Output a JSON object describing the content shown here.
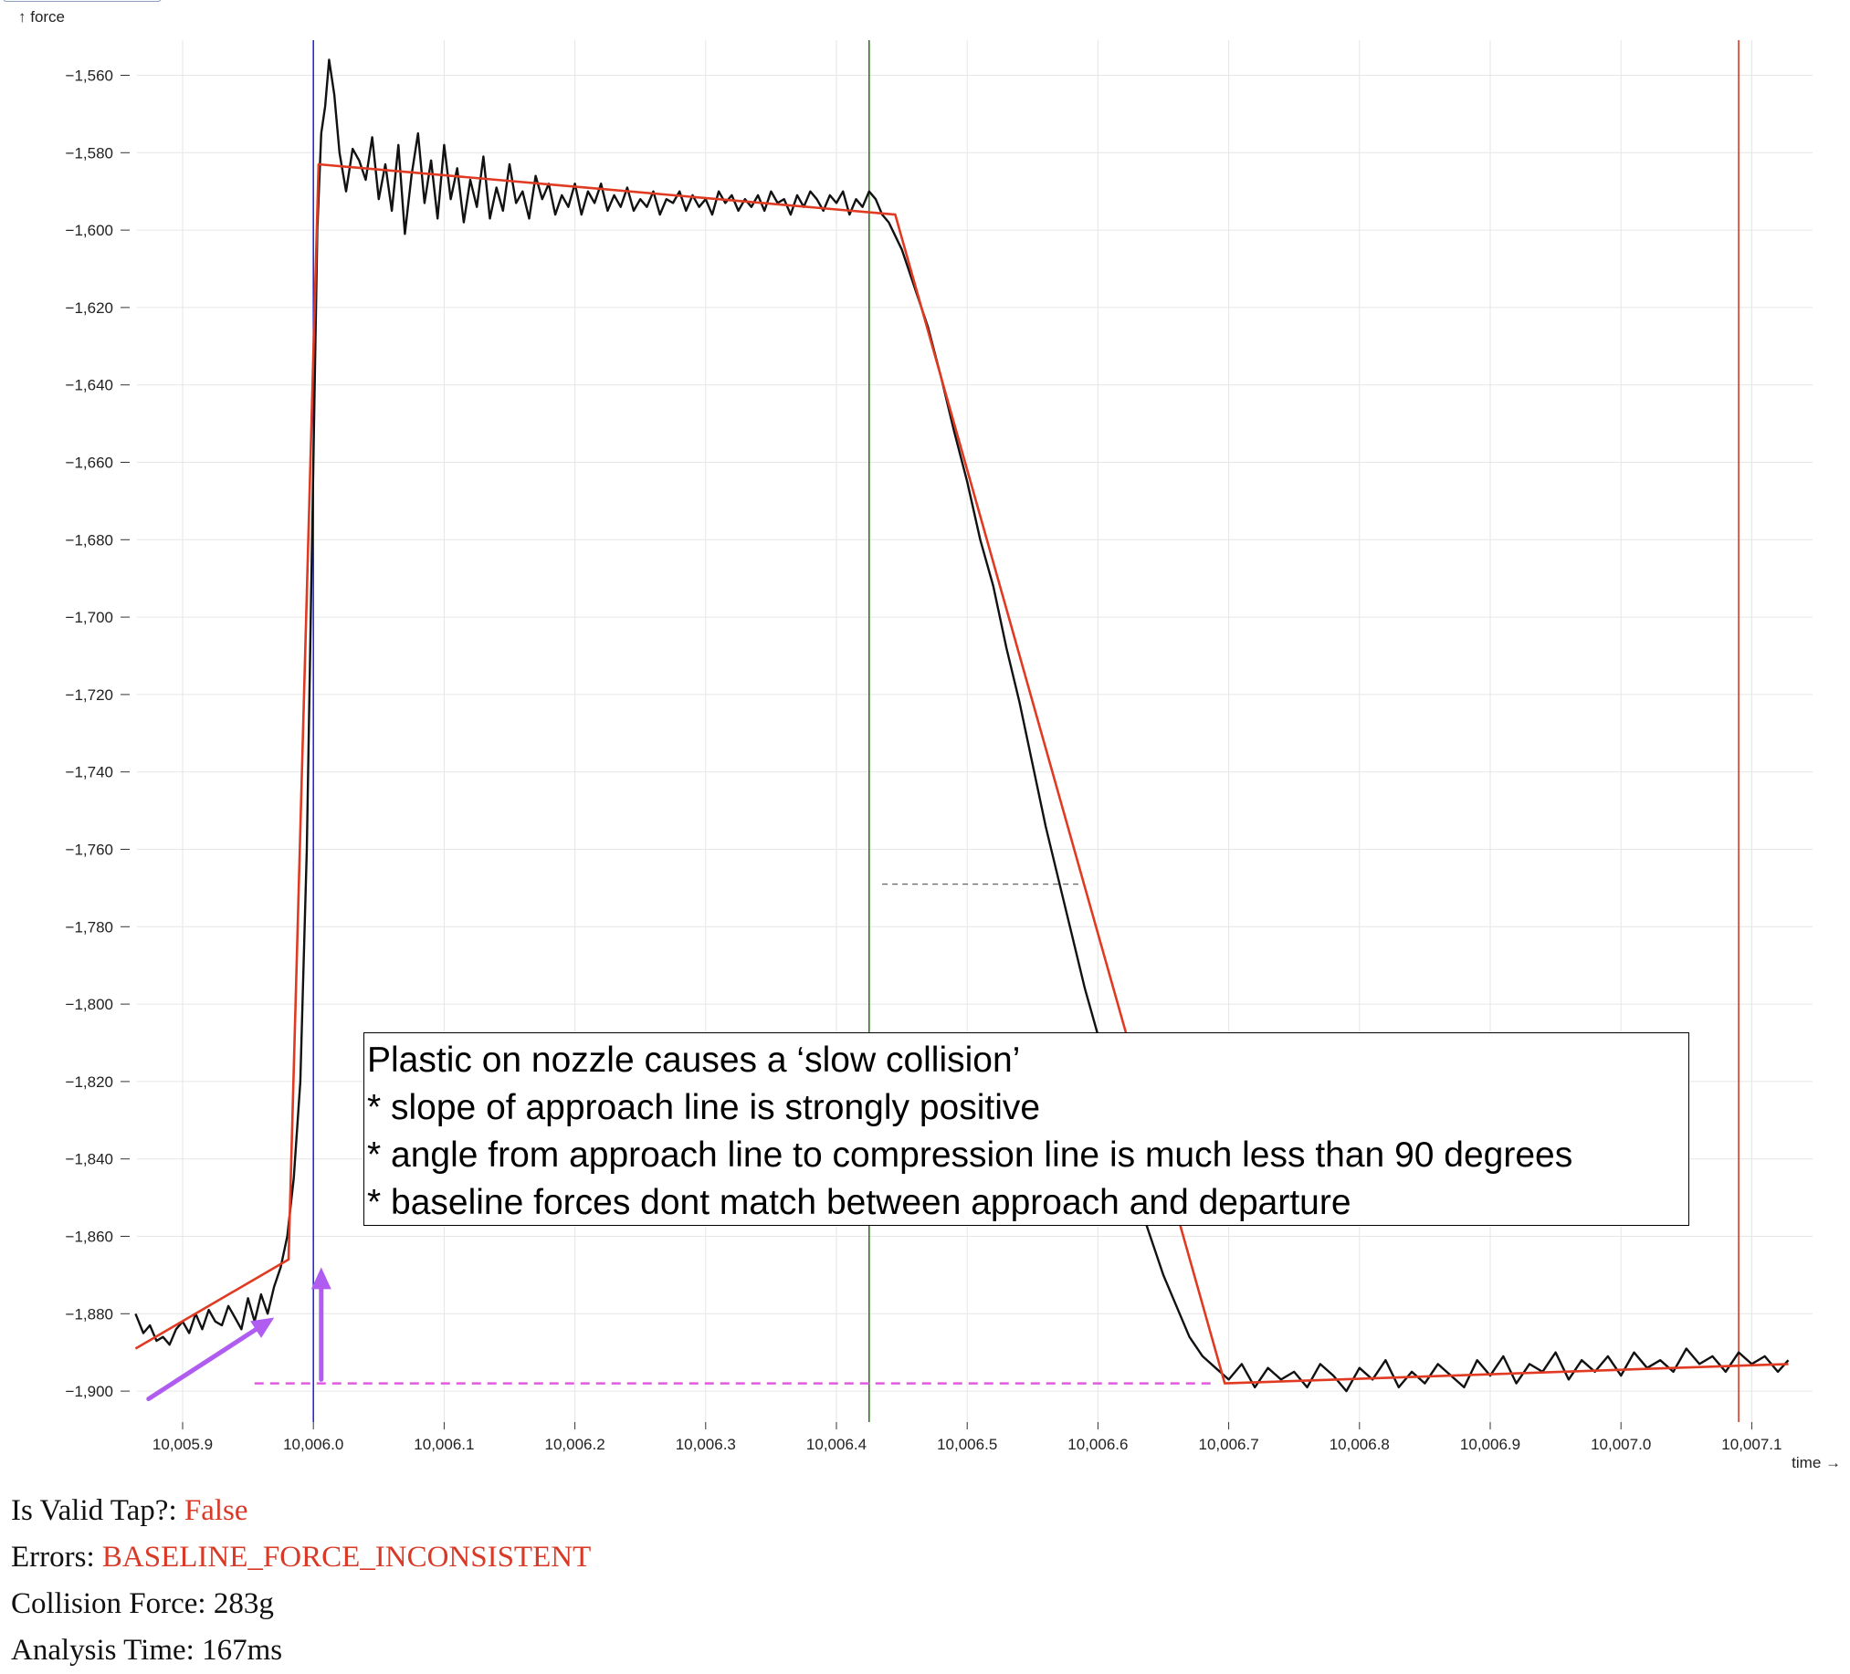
{
  "chart_data": {
    "type": "line",
    "xlabel": "time →",
    "ylabel": "↑ force",
    "xlim": [
      10005.86,
      10007.16
    ],
    "ylim": [
      -1907,
      -1551
    ],
    "x_ticks": [
      10005.9,
      10006.0,
      10006.1,
      10006.2,
      10006.3,
      10006.4,
      10006.5,
      10006.6,
      10006.7,
      10006.8,
      10006.9,
      10007.0,
      10007.1
    ],
    "x_tick_labels": [
      "10,005.9",
      "10,006.0",
      "10,006.1",
      "10,006.2",
      "10,006.3",
      "10,006.4",
      "10,006.5",
      "10,006.6",
      "10,006.7",
      "10,006.8",
      "10,006.9",
      "10,007.0",
      "10,007.1"
    ],
    "y_ticks": [
      -1560,
      -1580,
      -1600,
      -1620,
      -1640,
      -1660,
      -1680,
      -1700,
      -1720,
      -1740,
      -1760,
      -1780,
      -1800,
      -1820,
      -1840,
      -1860,
      -1880,
      -1900
    ],
    "y_tick_labels": [
      "−1,560",
      "−1,580",
      "−1,600",
      "−1,620",
      "−1,640",
      "−1,660",
      "−1,680",
      "−1,700",
      "−1,720",
      "−1,740",
      "−1,760",
      "−1,780",
      "−1,800",
      "−1,820",
      "−1,840",
      "−1,860",
      "−1,880",
      "−1,900"
    ],
    "grid": true,
    "series": [
      {
        "role": "force-signal",
        "color": "#111111",
        "x": [
          10005.864,
          10005.87,
          10005.875,
          10005.88,
          10005.885,
          10005.89,
          10005.895,
          10005.9,
          10005.905,
          10005.91,
          10005.915,
          10005.92,
          10005.925,
          10005.93,
          10005.935,
          10005.94,
          10005.945,
          10005.95,
          10005.955,
          10005.96,
          10005.965,
          10005.97,
          10005.975,
          10005.98,
          10005.985,
          10005.99,
          10005.995,
          10006.0,
          10006.003,
          10006.006,
          10006.009,
          10006.012,
          10006.016,
          10006.02,
          10006.025,
          10006.03,
          10006.035,
          10006.04,
          10006.045,
          10006.05,
          10006.055,
          10006.06,
          10006.065,
          10006.07,
          10006.075,
          10006.08,
          10006.085,
          10006.09,
          10006.095,
          10006.1,
          10006.105,
          10006.11,
          10006.115,
          10006.12,
          10006.125,
          10006.13,
          10006.135,
          10006.14,
          10006.145,
          10006.15,
          10006.155,
          10006.16,
          10006.165,
          10006.17,
          10006.175,
          10006.18,
          10006.185,
          10006.19,
          10006.195,
          10006.2,
          10006.205,
          10006.21,
          10006.215,
          10006.22,
          10006.225,
          10006.23,
          10006.235,
          10006.24,
          10006.245,
          10006.25,
          10006.255,
          10006.26,
          10006.265,
          10006.27,
          10006.275,
          10006.28,
          10006.285,
          10006.29,
          10006.295,
          10006.3,
          10006.305,
          10006.31,
          10006.315,
          10006.32,
          10006.325,
          10006.33,
          10006.335,
          10006.34,
          10006.345,
          10006.35,
          10006.355,
          10006.36,
          10006.365,
          10006.37,
          10006.375,
          10006.38,
          10006.385,
          10006.39,
          10006.395,
          10006.4,
          10006.405,
          10006.41,
          10006.415,
          10006.42,
          10006.425,
          10006.43,
          10006.435,
          10006.44,
          10006.45,
          10006.46,
          10006.47,
          10006.48,
          10006.49,
          10006.5,
          10006.51,
          10006.52,
          10006.53,
          10006.54,
          10006.55,
          10006.56,
          10006.57,
          10006.58,
          10006.59,
          10006.6,
          10006.61,
          10006.62,
          10006.63,
          10006.64,
          10006.65,
          10006.66,
          10006.67,
          10006.68,
          10006.69,
          10006.7,
          10006.71,
          10006.72,
          10006.73,
          10006.74,
          10006.75,
          10006.76,
          10006.77,
          10006.78,
          10006.79,
          10006.8,
          10006.81,
          10006.82,
          10006.83,
          10006.84,
          10006.85,
          10006.86,
          10006.87,
          10006.88,
          10006.89,
          10006.9,
          10006.91,
          10006.92,
          10006.93,
          10006.94,
          10006.95,
          10006.96,
          10006.97,
          10006.98,
          10006.99,
          10007.0,
          10007.01,
          10007.02,
          10007.03,
          10007.04,
          10007.05,
          10007.06,
          10007.07,
          10007.08,
          10007.09,
          10007.1,
          10007.11,
          10007.12,
          10007.128
        ],
        "y": [
          -1880,
          -1885,
          -1883,
          -1887,
          -1886,
          -1888,
          -1884,
          -1882,
          -1885,
          -1880,
          -1884,
          -1879,
          -1882,
          -1883,
          -1878,
          -1881,
          -1884,
          -1876,
          -1882,
          -1875,
          -1880,
          -1873,
          -1868,
          -1860,
          -1845,
          -1820,
          -1760,
          -1660,
          -1600,
          -1575,
          -1568,
          -1556,
          -1565,
          -1580,
          -1590,
          -1579,
          -1582,
          -1587,
          -1576,
          -1592,
          -1583,
          -1595,
          -1578,
          -1601,
          -1586,
          -1575,
          -1593,
          -1582,
          -1597,
          -1578,
          -1592,
          -1584,
          -1598,
          -1587,
          -1594,
          -1581,
          -1597,
          -1589,
          -1595,
          -1583,
          -1593,
          -1590,
          -1597,
          -1586,
          -1592,
          -1588,
          -1596,
          -1591,
          -1594,
          -1588,
          -1596,
          -1590,
          -1593,
          -1588,
          -1595,
          -1591,
          -1594,
          -1589,
          -1595,
          -1592,
          -1594,
          -1590,
          -1596,
          -1592,
          -1593,
          -1590,
          -1595,
          -1591,
          -1594,
          -1592,
          -1596,
          -1590,
          -1593,
          -1591,
          -1595,
          -1592,
          -1594,
          -1591,
          -1595,
          -1590,
          -1593,
          -1592,
          -1596,
          -1591,
          -1594,
          -1590,
          -1592,
          -1595,
          -1591,
          -1593,
          -1590,
          -1596,
          -1592,
          -1594,
          -1590,
          -1592,
          -1596,
          -1598,
          -1605,
          -1615,
          -1625,
          -1638,
          -1652,
          -1665,
          -1680,
          -1692,
          -1708,
          -1722,
          -1738,
          -1754,
          -1768,
          -1782,
          -1796,
          -1808,
          -1822,
          -1836,
          -1850,
          -1860,
          -1870,
          -1878,
          -1886,
          -1891,
          -1894,
          -1897,
          -1893,
          -1899,
          -1894,
          -1897,
          -1895,
          -1899,
          -1893,
          -1896,
          -1900,
          -1894,
          -1897,
          -1892,
          -1899,
          -1895,
          -1898,
          -1893,
          -1896,
          -1899,
          -1892,
          -1896,
          -1891,
          -1898,
          -1893,
          -1895,
          -1890,
          -1897,
          -1892,
          -1895,
          -1891,
          -1896,
          -1890,
          -1894,
          -1892,
          -1895,
          -1889,
          -1893,
          -1891,
          -1895,
          -1890,
          -1893,
          -1891,
          -1895,
          -1892
        ]
      },
      {
        "role": "fit-line",
        "color": "#e03a22",
        "x": [
          10005.864,
          10005.981,
          10006.004,
          10006.445,
          10006.697,
          10007.128
        ],
        "y": [
          -1889,
          -1866,
          -1583,
          -1596,
          -1898,
          -1893
        ]
      }
    ],
    "vertical_markers": [
      {
        "x": 10006.0,
        "color": "#2a2ad8"
      },
      {
        "x": 10006.425,
        "color": "#2f7a1f"
      },
      {
        "x": 10007.09,
        "color": "#d83a27"
      }
    ],
    "dashed_lines": [
      {
        "x1": 10005.955,
        "x2": 10006.69,
        "y": -1898,
        "color": "#e05ae0"
      },
      {
        "x1": 10006.435,
        "x2": 10006.585,
        "y": -1769,
        "color": "#666666"
      }
    ],
    "arrows": [
      {
        "x1": 10005.874,
        "y1": -1902,
        "x2": 10005.97,
        "y2": -1881,
        "color": "#b05cf0"
      },
      {
        "x1": 10006.006,
        "y1": -1897,
        "x2": 10006.006,
        "y2": -1868,
        "color": "#b05cf0"
      }
    ]
  },
  "annotation": {
    "lines": [
      "Plastic on nozzle causes a ‘slow collision’",
      "* slope of approach line is strongly positive",
      "* angle from approach line to compression line is much less than 90 degrees",
      "* baseline forces dont match between approach and departure"
    ]
  },
  "info": {
    "valid_label": "Is Valid Tap?: ",
    "valid_value": "False",
    "errors_label": "Errors: ",
    "errors_value": "BASELINE_FORCE_INCONSISTENT",
    "collision_label": "Collision Force: ",
    "collision_value": "283g",
    "analysis_label": "Analysis Time: ",
    "analysis_value": "167ms"
  }
}
